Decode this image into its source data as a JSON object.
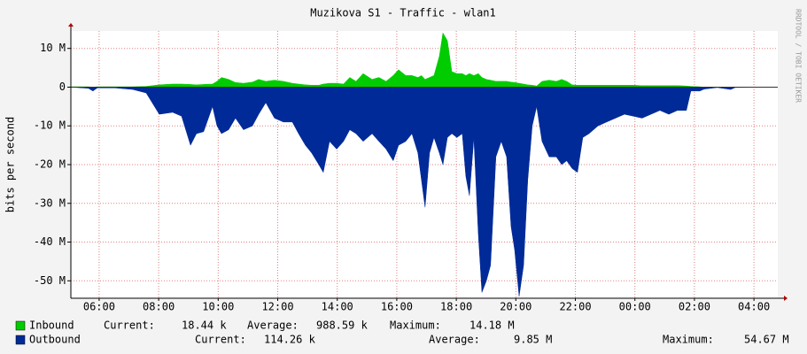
{
  "chart_data": {
    "type": "area",
    "title": "Muzikova S1 - Traffic - wlan1",
    "y_label": "bits per second",
    "watermark": "RRDTOOL / TOBI OETIKER",
    "x": [
      5.05,
      5.64,
      5.79,
      5.94,
      6.54,
      7.13,
      7.58,
      8.02,
      8.47,
      8.77,
      9.07,
      9.27,
      9.51,
      9.81,
      9.96,
      10.11,
      10.35,
      10.58,
      10.85,
      11.15,
      11.36,
      11.6,
      11.89,
      12.19,
      12.49,
      12.7,
      12.93,
      13.14,
      13.38,
      13.53,
      13.74,
      13.98,
      14.21,
      14.42,
      14.63,
      14.87,
      15.17,
      15.4,
      15.64,
      15.88,
      16.06,
      16.3,
      16.51,
      16.71,
      16.83,
      16.95,
      17.1,
      17.25,
      17.43,
      17.55,
      17.7,
      17.85,
      18.02,
      18.2,
      18.32,
      18.44,
      18.59,
      18.74,
      18.86,
      19.01,
      19.15,
      19.33,
      19.51,
      19.69,
      19.84,
      19.96,
      20.11,
      20.26,
      20.4,
      20.55,
      20.7,
      20.88,
      21.12,
      21.36,
      21.54,
      21.71,
      21.89,
      22.07,
      22.25,
      22.46,
      22.76,
      23.05,
      23.35,
      23.65,
      23.95,
      24.24,
      24.54,
      24.84,
      25.14,
      25.43,
      25.73,
      25.88,
      26.18,
      26.33,
      26.77,
      27.22,
      27.37,
      28.8
    ],
    "series": [
      {
        "name": "Inbound",
        "color": "#00cc00",
        "values": [
          100000,
          100000,
          0,
          100000,
          100000,
          100000,
          200000,
          600000,
          800000,
          800000,
          700000,
          600000,
          700000,
          800000,
          1500000,
          2500000,
          2000000,
          1200000,
          1000000,
          1300000,
          2000000,
          1500000,
          1800000,
          1500000,
          1000000,
          800000,
          600000,
          500000,
          500000,
          800000,
          1000000,
          1000000,
          800000,
          2500000,
          1500000,
          3500000,
          2000000,
          2500000,
          1500000,
          3000000,
          4500000,
          3000000,
          3000000,
          2500000,
          3000000,
          2000000,
          2500000,
          3000000,
          8000000,
          14000000,
          12000000,
          4000000,
          3500000,
          3500000,
          3000000,
          3500000,
          3000000,
          3500000,
          2500000,
          2000000,
          1800000,
          1500000,
          1500000,
          1500000,
          1300000,
          1200000,
          1000000,
          800000,
          600000,
          500000,
          300000,
          1500000,
          1800000,
          1500000,
          2000000,
          1500000,
          600000,
          500000,
          500000,
          500000,
          500000,
          500000,
          500000,
          500000,
          500000,
          400000,
          400000,
          400000,
          400000,
          400000,
          300000,
          200000,
          100000,
          0,
          0,
          0,
          0,
          0
        ]
      },
      {
        "name": "Outbound",
        "color": "#002a97",
        "values": [
          0,
          -300000,
          -1000000,
          -200000,
          -200000,
          -600000,
          -1500000,
          -7000000,
          -6500000,
          -7500000,
          -15000000,
          -12000000,
          -11500000,
          -5000000,
          -10000000,
          -12000000,
          -11000000,
          -8000000,
          -11000000,
          -10000000,
          -7000000,
          -4000000,
          -8000000,
          -9000000,
          -9000000,
          -12000000,
          -15000000,
          -17000000,
          -20000000,
          -22000000,
          -14000000,
          -16000000,
          -14000000,
          -11000000,
          -12000000,
          -14000000,
          -12000000,
          -14000000,
          -16000000,
          -19000000,
          -15000000,
          -14000000,
          -12000000,
          -17000000,
          -24000000,
          -31000000,
          -17000000,
          -13000000,
          -17000000,
          -20000000,
          -13000000,
          -12000000,
          -13000000,
          -12000000,
          -23000000,
          -28000000,
          -13000000,
          -38000000,
          -53000000,
          -50000000,
          -46000000,
          -18000000,
          -14000000,
          -18000000,
          -36000000,
          -42000000,
          -54000000,
          -46000000,
          -24000000,
          -10000000,
          -5000000,
          -14000000,
          -18000000,
          -18000000,
          -20000000,
          -19000000,
          -21000000,
          -22000000,
          -13000000,
          -12000000,
          -10000000,
          -9000000,
          -8000000,
          -7000000,
          -7500000,
          -8000000,
          -7000000,
          -6000000,
          -7000000,
          -6000000,
          -6000000,
          -1000000,
          -1000000,
          -500000,
          -100000,
          -600000,
          -100000,
          0
        ]
      }
    ],
    "legend_stats": [
      [
        {
          "label": "Current:",
          "value": "18.44 k"
        },
        {
          "label": "Average:",
          "value": "988.59 k"
        },
        {
          "label": "Maximum:",
          "value": "14.18 M"
        }
      ],
      [
        {
          "label": "Current:",
          "value": "114.26 k"
        },
        {
          "label": "Average:",
          "value": "9.85 M"
        },
        {
          "label": "Maximum:",
          "value": "54.67 M"
        }
      ]
    ],
    "xlim": [
      5.05,
      28.8
    ],
    "xticks": [
      {
        "value": 6,
        "label": "06:00"
      },
      {
        "value": 8,
        "label": "08:00"
      },
      {
        "value": 10,
        "label": "10:00"
      },
      {
        "value": 12,
        "label": "12:00"
      },
      {
        "value": 14,
        "label": "14:00"
      },
      {
        "value": 16,
        "label": "16:00"
      },
      {
        "value": 18,
        "label": "18:00"
      },
      {
        "value": 20,
        "label": "20:00"
      },
      {
        "value": 22,
        "label": "22:00"
      },
      {
        "value": 24,
        "label": "00:00"
      },
      {
        "value": 26,
        "label": "02:00"
      },
      {
        "value": 28,
        "label": "04:00"
      }
    ],
    "ylim": [
      -54500000,
      14500000
    ],
    "yticks": [
      {
        "value": 10000000,
        "label": "10 M"
      },
      0,
      {
        "value": -10000000,
        "label": "-10 M"
      },
      {
        "value": -20000000,
        "label": "-20 M"
      },
      {
        "value": -30000000,
        "label": "-30 M"
      },
      {
        "value": -40000000,
        "label": "-40 M"
      },
      {
        "value": -50000000,
        "label": "-50 M"
      }
    ],
    "grid": true
  }
}
